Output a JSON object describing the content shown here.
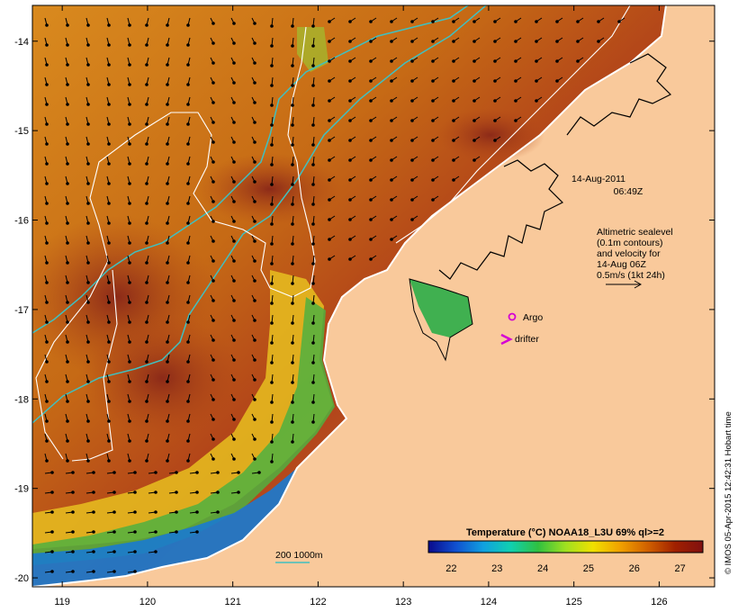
{
  "map": {
    "lat_labels": [
      "-14",
      "-15",
      "-16",
      "-17",
      "-18",
      "-19",
      "-20"
    ],
    "lon_labels": [
      "119",
      "120",
      "121",
      "122",
      "123",
      "124",
      "125",
      "126"
    ],
    "lat_range": [
      -20.1,
      -13.6
    ],
    "lon_range": [
      118.65,
      126.65
    ],
    "background_land_color": "#f9c99b",
    "coast_line_color": "#ffffff"
  },
  "timestamp": {
    "date": "14-Aug-2011",
    "time": "06:49Z"
  },
  "altimetry_note": {
    "line1": "Altimetric sealevel",
    "line2": "(0.1m contours)",
    "line3": "and velocity for",
    "line4": "14-Aug 06Z",
    "line5": "0.5m/s (1kt 24h)"
  },
  "legend": {
    "argo_label": "Argo",
    "argo_color": "#d400d4",
    "drifter_label": "drifter",
    "drifter_color": "#d400d4",
    "depth_contours_label": "200  1000m",
    "depth_contour_color": "#40c0c0"
  },
  "colorbar": {
    "title": "Temperature (°C) NOAA18_L3U 69% ql>=2",
    "ticks": [
      "22",
      "23",
      "24",
      "25",
      "26",
      "27"
    ],
    "range": [
      21.5,
      27.5
    ],
    "colors": [
      "#0a0a8c",
      "#1050d0",
      "#10a0e0",
      "#10d0b0",
      "#30c040",
      "#a0e020",
      "#f0e000",
      "#f0a000",
      "#d06000",
      "#a02000",
      "#801010"
    ]
  },
  "credit": "© IMOS 05-Apr-2015 12:42:31 Hobart time"
}
